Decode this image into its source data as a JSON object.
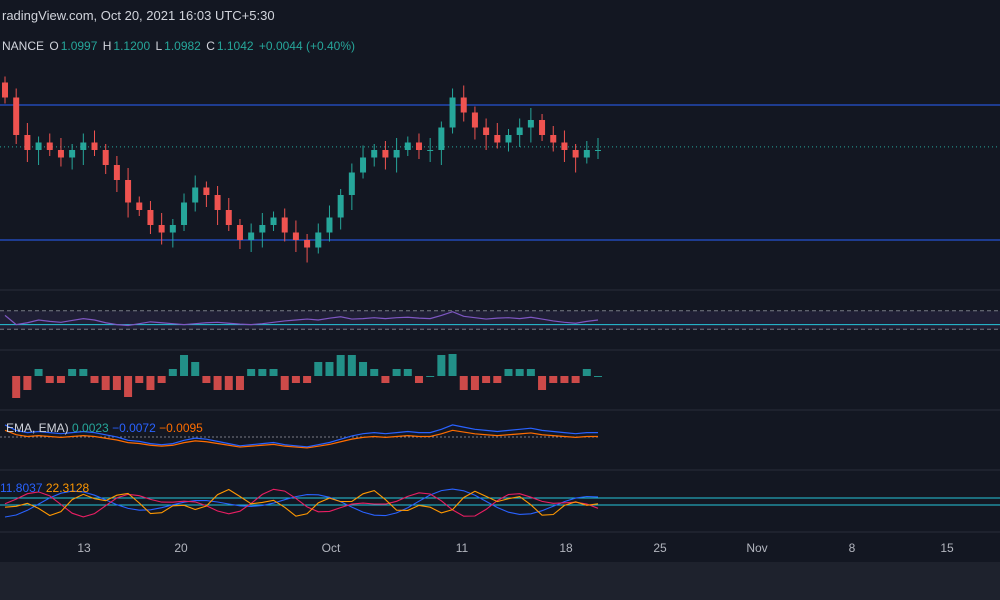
{
  "header": {
    "text": "radingView.com, Oct 20, 2021 16:03 UTC+5:30"
  },
  "ohlc": {
    "symbol": "NANCE",
    "o_label": "O",
    "o_value": "1.0997",
    "h_label": "H",
    "h_value": "1.1200",
    "l_label": "L",
    "l_value": "1.0982",
    "c_label": "C",
    "c_value": "1.1042",
    "change": "+0.0044 (+0.40%)"
  },
  "macd_legend": {
    "name": "EMA, EMA)",
    "v1": "0.0023",
    "v2": "−0.0072",
    "v3": "−0.0095"
  },
  "dmi_legend": {
    "v1": "11.8037",
    "v2": "22.3128"
  },
  "colors": {
    "background": "#131722",
    "up": "#26a69a",
    "down": "#ef5350",
    "hline": "#2962ff",
    "rsi": "#7e57c2",
    "macd": "#2962ff",
    "signal": "#ff6d00",
    "plus_di": "#2962ff",
    "minus_di": "#e91e63",
    "adx": "#ff9800",
    "level": "#26c6da"
  },
  "chart_data": {
    "type": "line",
    "x_ticks": [
      "13",
      "20",
      "Oct",
      "11",
      "18",
      "25",
      "Nov",
      "8",
      "15"
    ],
    "horizontal_levels": {
      "resistance": 1.16,
      "support": 0.98,
      "current": 1.1042
    },
    "price_close": [
      1.17,
      1.12,
      1.1,
      1.11,
      1.1,
      1.09,
      1.1,
      1.11,
      1.1,
      1.08,
      1.06,
      1.03,
      1.02,
      1.0,
      0.99,
      1.0,
      1.03,
      1.05,
      1.04,
      1.02,
      1.0,
      0.98,
      0.99,
      1.0,
      1.01,
      0.99,
      0.98,
      0.97,
      0.99,
      1.01,
      1.04,
      1.07,
      1.09,
      1.1,
      1.09,
      1.1,
      1.11,
      1.1,
      1.1,
      1.13,
      1.17,
      1.15,
      1.13,
      1.12,
      1.11,
      1.12,
      1.13,
      1.14,
      1.12,
      1.11,
      1.1,
      1.09,
      1.1,
      1.1
    ],
    "rsi": [
      60,
      40,
      44,
      50,
      47,
      45,
      49,
      53,
      50,
      44,
      40,
      38,
      42,
      46,
      44,
      42,
      40,
      42,
      44,
      45,
      43,
      41,
      40,
      42,
      45,
      48,
      50,
      52,
      50,
      54,
      57,
      52,
      53,
      55,
      53,
      55,
      56,
      54,
      53,
      60,
      68,
      58,
      55,
      52,
      54,
      55,
      53,
      56,
      52,
      48,
      45,
      43,
      47,
      50
    ]
  }
}
